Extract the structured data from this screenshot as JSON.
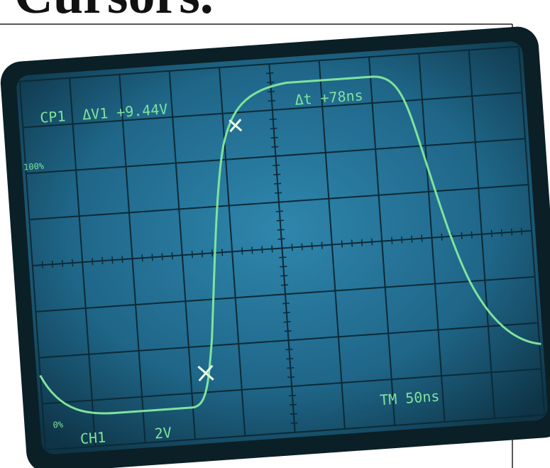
{
  "heading": "Cursors.",
  "screen": {
    "cursor_label": "CP1",
    "delta_v": "ΔV1 +9.44V",
    "delta_t": "Δt +78ns",
    "timebase": "TM 50ns",
    "channel": "CH1",
    "volts_div": "2V",
    "ref_low": "0%",
    "ref_high": "100%"
  }
}
